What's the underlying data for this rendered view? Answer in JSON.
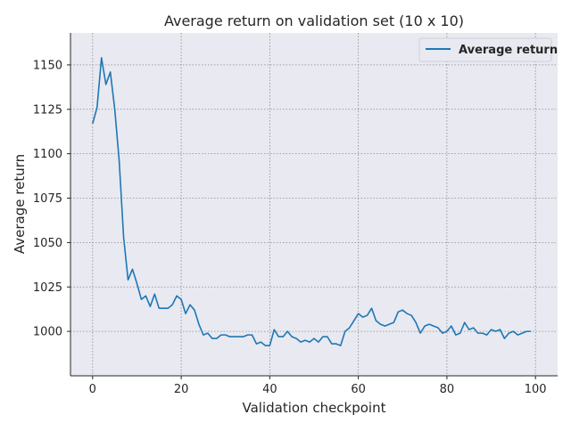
{
  "chart_data": {
    "type": "line",
    "title": "Average return on validation set (10 x 10)",
    "xlabel": "Validation checkpoint",
    "ylabel": "Average return",
    "xlim": [
      -5,
      105
    ],
    "ylim": [
      975,
      1168
    ],
    "xticks": [
      0,
      20,
      40,
      60,
      80,
      100
    ],
    "yticks": [
      1000,
      1025,
      1050,
      1075,
      1100,
      1125,
      1150
    ],
    "grid": true,
    "legend": {
      "placement": "top-right"
    },
    "background_color": "#e8e9f1",
    "series": [
      {
        "name": "Average return",
        "color": "#1f77b4",
        "x": [
          0,
          1,
          2,
          3,
          4,
          5,
          6,
          7,
          8,
          9,
          10,
          11,
          12,
          13,
          14,
          15,
          16,
          17,
          18,
          19,
          20,
          21,
          22,
          23,
          24,
          25,
          26,
          27,
          28,
          29,
          30,
          31,
          32,
          33,
          34,
          35,
          36,
          37,
          38,
          39,
          40,
          41,
          42,
          43,
          44,
          45,
          46,
          47,
          48,
          49,
          50,
          51,
          52,
          53,
          54,
          55,
          56,
          57,
          58,
          59,
          60,
          61,
          62,
          63,
          64,
          65,
          66,
          67,
          68,
          69,
          70,
          71,
          72,
          73,
          74,
          75,
          76,
          77,
          78,
          79,
          80,
          81,
          82,
          83,
          84,
          85,
          86,
          87,
          88,
          89,
          90,
          91,
          92,
          93,
          94,
          95,
          96,
          97,
          98,
          99
        ],
        "values": [
          1117,
          1126,
          1154,
          1139,
          1146,
          1125,
          1096,
          1053,
          1029,
          1035,
          1027,
          1018,
          1020,
          1014,
          1021,
          1013,
          1013,
          1013,
          1015,
          1020,
          1018,
          1010,
          1015,
          1012,
          1004,
          998,
          999,
          996,
          996,
          998,
          998,
          997,
          997,
          997,
          997,
          998,
          998,
          993,
          994,
          992,
          992,
          1001,
          997,
          997,
          1000,
          997,
          996,
          994,
          995,
          994,
          996,
          994,
          997,
          997,
          993,
          993,
          992,
          1000,
          1002,
          1006,
          1010,
          1008,
          1009,
          1013,
          1006,
          1004,
          1003,
          1004,
          1005,
          1011,
          1012,
          1010,
          1009,
          1005,
          999,
          1003,
          1004,
          1003,
          1002,
          999,
          1000,
          1003,
          998,
          999,
          1005,
          1001,
          1002,
          999,
          999,
          998,
          1001,
          1000,
          1001,
          996,
          999,
          1000,
          998,
          999,
          1000,
          1000
        ]
      }
    ]
  }
}
